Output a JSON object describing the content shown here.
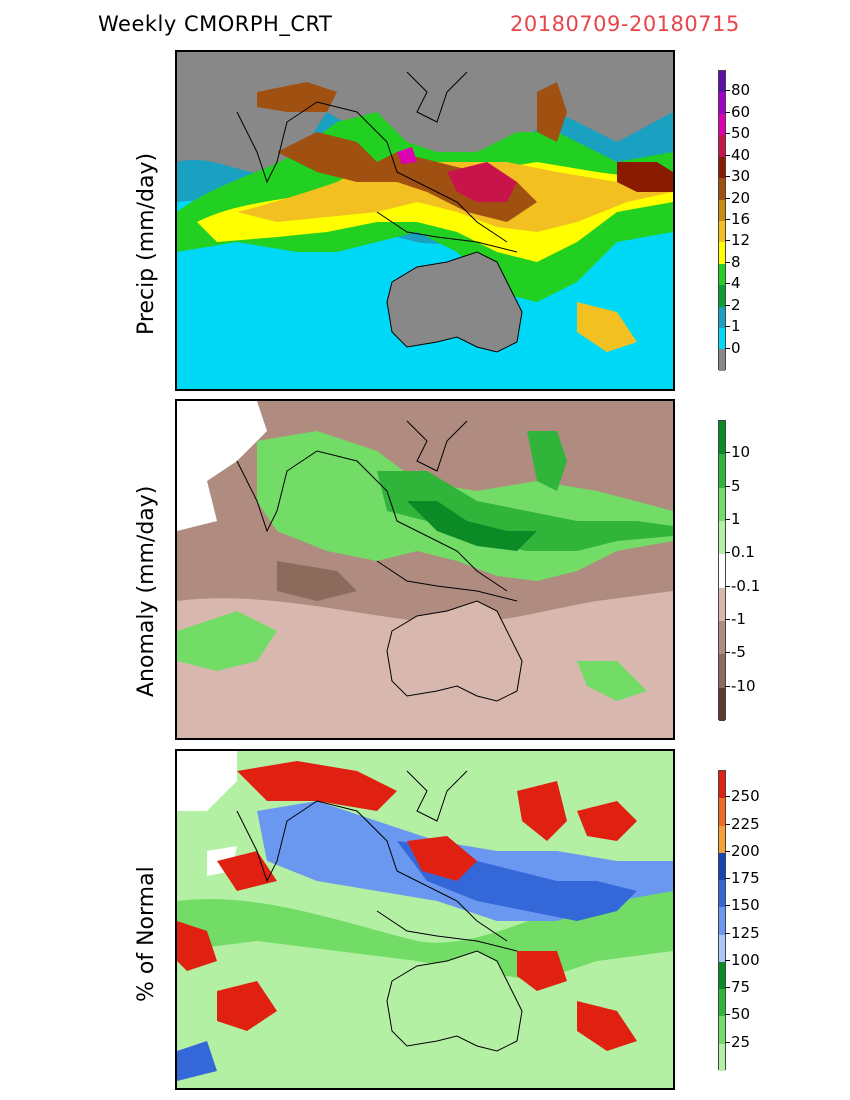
{
  "header": {
    "title": "Weekly CMORPH_CRT",
    "date_range": "20180709-20180715"
  },
  "panels": [
    {
      "id": "precip",
      "ylabel": "Precip (mm/day)",
      "colorbar": {
        "colors": [
          "#888888",
          "#00d8f8",
          "#1aa0c0",
          "#0aa030",
          "#22d022",
          "#ffff00",
          "#f2c020",
          "#c88c10",
          "#a05010",
          "#8a1a00",
          "#c8144a",
          "#e000b4",
          "#a000c8",
          "#5c10a8"
        ],
        "labels": [
          "0",
          "1",
          "2",
          "4",
          "8",
          "12",
          "16",
          "20",
          "30",
          "40",
          "50",
          "60",
          "80"
        ]
      }
    },
    {
      "id": "anomaly",
      "ylabel": "Anomaly (mm/day)",
      "colorbar": {
        "colors": [
          "#5c3c2c",
          "#8c6a5c",
          "#b08c80",
          "#d8b8ae",
          "#ffffff",
          "#b4f0a4",
          "#72dc66",
          "#30b43a",
          "#0c8a26"
        ],
        "labels": [
          "-10",
          "-5",
          "-1",
          "-0.1",
          "0.1",
          "1",
          "5",
          "10"
        ]
      }
    },
    {
      "id": "pct",
      "ylabel": "% of Normal",
      "colorbar": {
        "colors": [
          "#b4f0a4",
          "#72dc66",
          "#30b43a",
          "#0c8a26",
          "#a8c8f8",
          "#6a98f0",
          "#3468d8",
          "#1448b0",
          "#f8a038",
          "#f06a20",
          "#e02010"
        ],
        "labels": [
          "25",
          "50",
          "75",
          "100",
          "125",
          "150",
          "175",
          "200",
          "225",
          "250"
        ]
      }
    }
  ]
}
